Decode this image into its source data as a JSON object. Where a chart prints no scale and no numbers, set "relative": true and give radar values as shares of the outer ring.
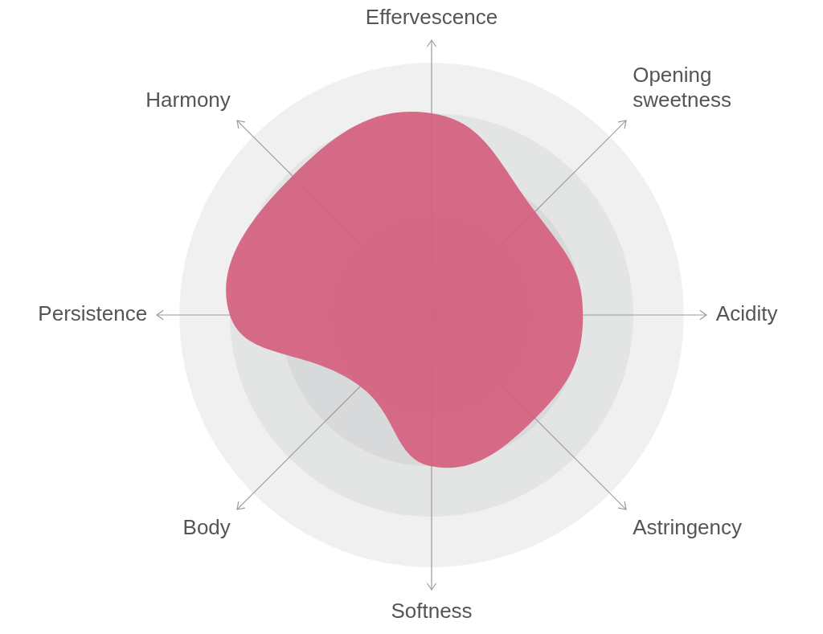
{
  "chart_data": {
    "type": "radar",
    "relative": true,
    "grid": true,
    "legend": false,
    "categories": [
      "Effervescence",
      "Opening\nsweetness",
      "Acidity",
      "Astringency",
      "Softness",
      "Body",
      "Persistence",
      "Harmony"
    ],
    "series": [
      {
        "color": "#d4607f",
        "values": [
          0.8,
          0.58,
          0.6,
          0.58,
          0.6,
          0.4,
          0.8,
          0.78
        ]
      }
    ]
  }
}
